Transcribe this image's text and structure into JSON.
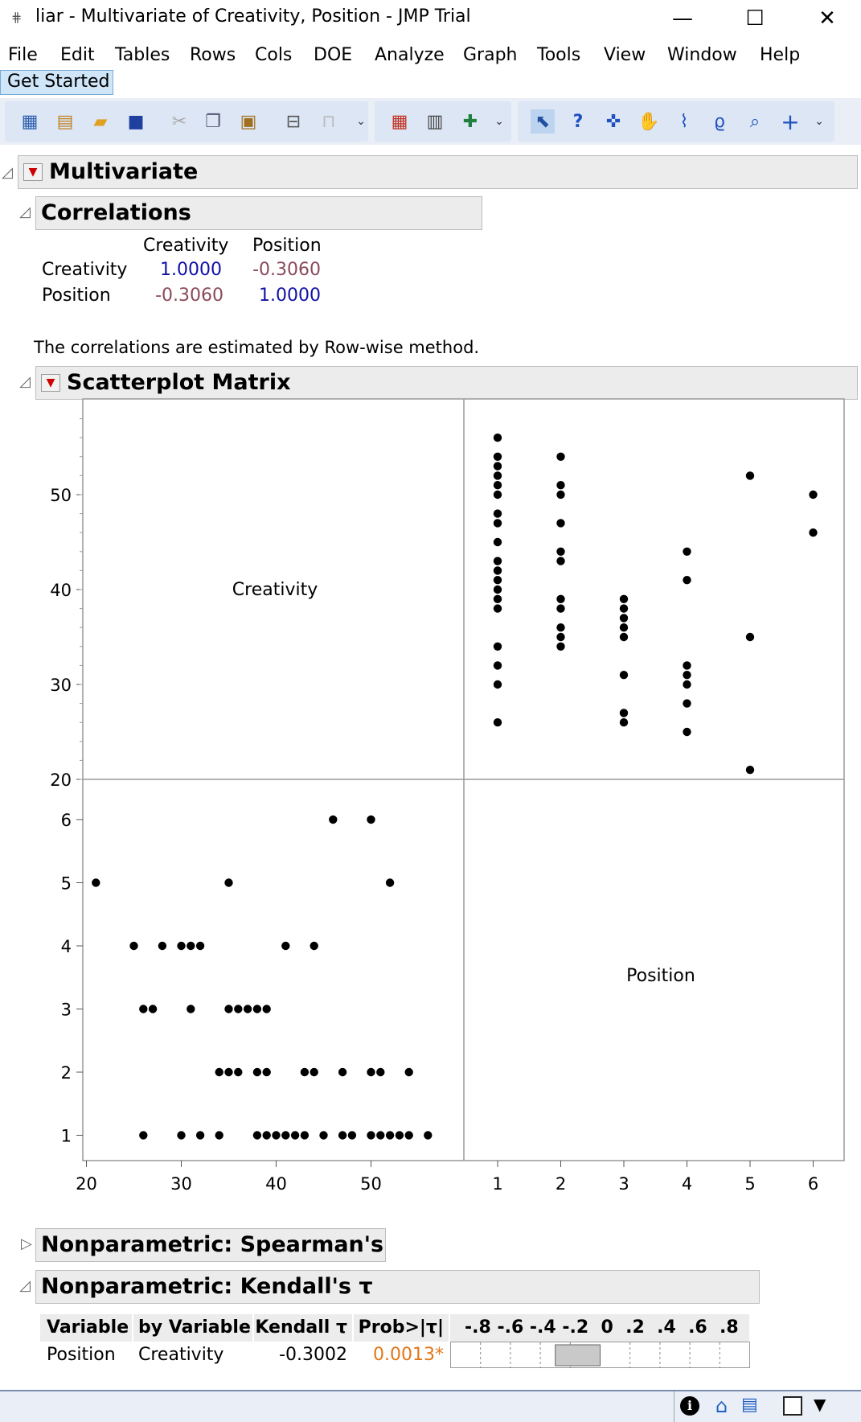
{
  "window": {
    "title": "liar - Multivariate of Creativity, Position - JMP Trial",
    "app_icon": "grid-icon",
    "minimize": "—",
    "maximize": "☐",
    "close": "✕"
  },
  "menu": [
    "File",
    "Edit",
    "Tables",
    "Rows",
    "Cols",
    "DOE",
    "Analyze",
    "Graph",
    "Tools",
    "View",
    "Window",
    "Help"
  ],
  "get_started": "Get Started",
  "multivariate": {
    "title": "Multivariate",
    "correlations": {
      "title": "Correlations",
      "columns": [
        "Creativity",
        "Position"
      ],
      "rows": [
        {
          "label": "Creativity",
          "values": [
            "1.0000",
            "-0.3060"
          ]
        },
        {
          "label": "Position",
          "values": [
            "-0.3060",
            "1.0000"
          ]
        }
      ],
      "note": "The correlations are estimated by Row-wise method."
    },
    "scatter": {
      "title": "Scatterplot Matrix",
      "diag_labels": [
        "Creativity",
        "Position"
      ],
      "creativity_ticks": [
        "20",
        "30",
        "40",
        "50"
      ],
      "position_ticks": [
        "1",
        "2",
        "3",
        "4",
        "5",
        "6"
      ]
    },
    "spearman": {
      "title": "Nonparametric: Spearman's ρ"
    },
    "kendall": {
      "title": "Nonparametric: Kendall's τ",
      "headers": [
        "Variable",
        "by Variable",
        "Kendall τ",
        "Prob>|τ|",
        "-.8 -.6 -.4 -.2  0  .2  .4  .6  .8"
      ],
      "row": {
        "variable": "Position",
        "by": "Creativity",
        "tau": "-0.3002",
        "prob": "0.0013*"
      },
      "tau_value": -0.3002
    }
  },
  "chart_data": {
    "type": "scatter",
    "title": "Scatterplot Matrix",
    "xlabel": "Position",
    "ylabel": "Creativity",
    "xlim": [
      0.4,
      6.5
    ],
    "ylim": [
      20,
      60
    ],
    "points": [
      [
        1,
        56
      ],
      [
        1,
        54
      ],
      [
        1,
        53
      ],
      [
        1,
        52
      ],
      [
        1,
        51
      ],
      [
        1,
        50
      ],
      [
        1,
        48
      ],
      [
        1,
        47
      ],
      [
        1,
        45
      ],
      [
        1,
        43
      ],
      [
        1,
        42
      ],
      [
        1,
        41
      ],
      [
        1,
        40
      ],
      [
        1,
        39
      ],
      [
        1,
        38
      ],
      [
        1,
        34
      ],
      [
        1,
        32
      ],
      [
        1,
        30
      ],
      [
        1,
        26
      ],
      [
        2,
        54
      ],
      [
        2,
        51
      ],
      [
        2,
        50
      ],
      [
        2,
        47
      ],
      [
        2,
        44
      ],
      [
        2,
        43
      ],
      [
        2,
        39
      ],
      [
        2,
        38
      ],
      [
        2,
        36
      ],
      [
        2,
        35
      ],
      [
        2,
        34
      ],
      [
        3,
        39
      ],
      [
        3,
        38
      ],
      [
        3,
        37
      ],
      [
        3,
        36
      ],
      [
        3,
        35
      ],
      [
        3,
        31
      ],
      [
        3,
        27
      ],
      [
        3,
        26
      ],
      [
        4,
        44
      ],
      [
        4,
        41
      ],
      [
        4,
        32
      ],
      [
        4,
        31
      ],
      [
        4,
        30
      ],
      [
        4,
        28
      ],
      [
        4,
        25
      ],
      [
        5,
        52
      ],
      [
        5,
        35
      ],
      [
        5,
        21
      ],
      [
        6,
        50
      ],
      [
        6,
        46
      ]
    ]
  }
}
